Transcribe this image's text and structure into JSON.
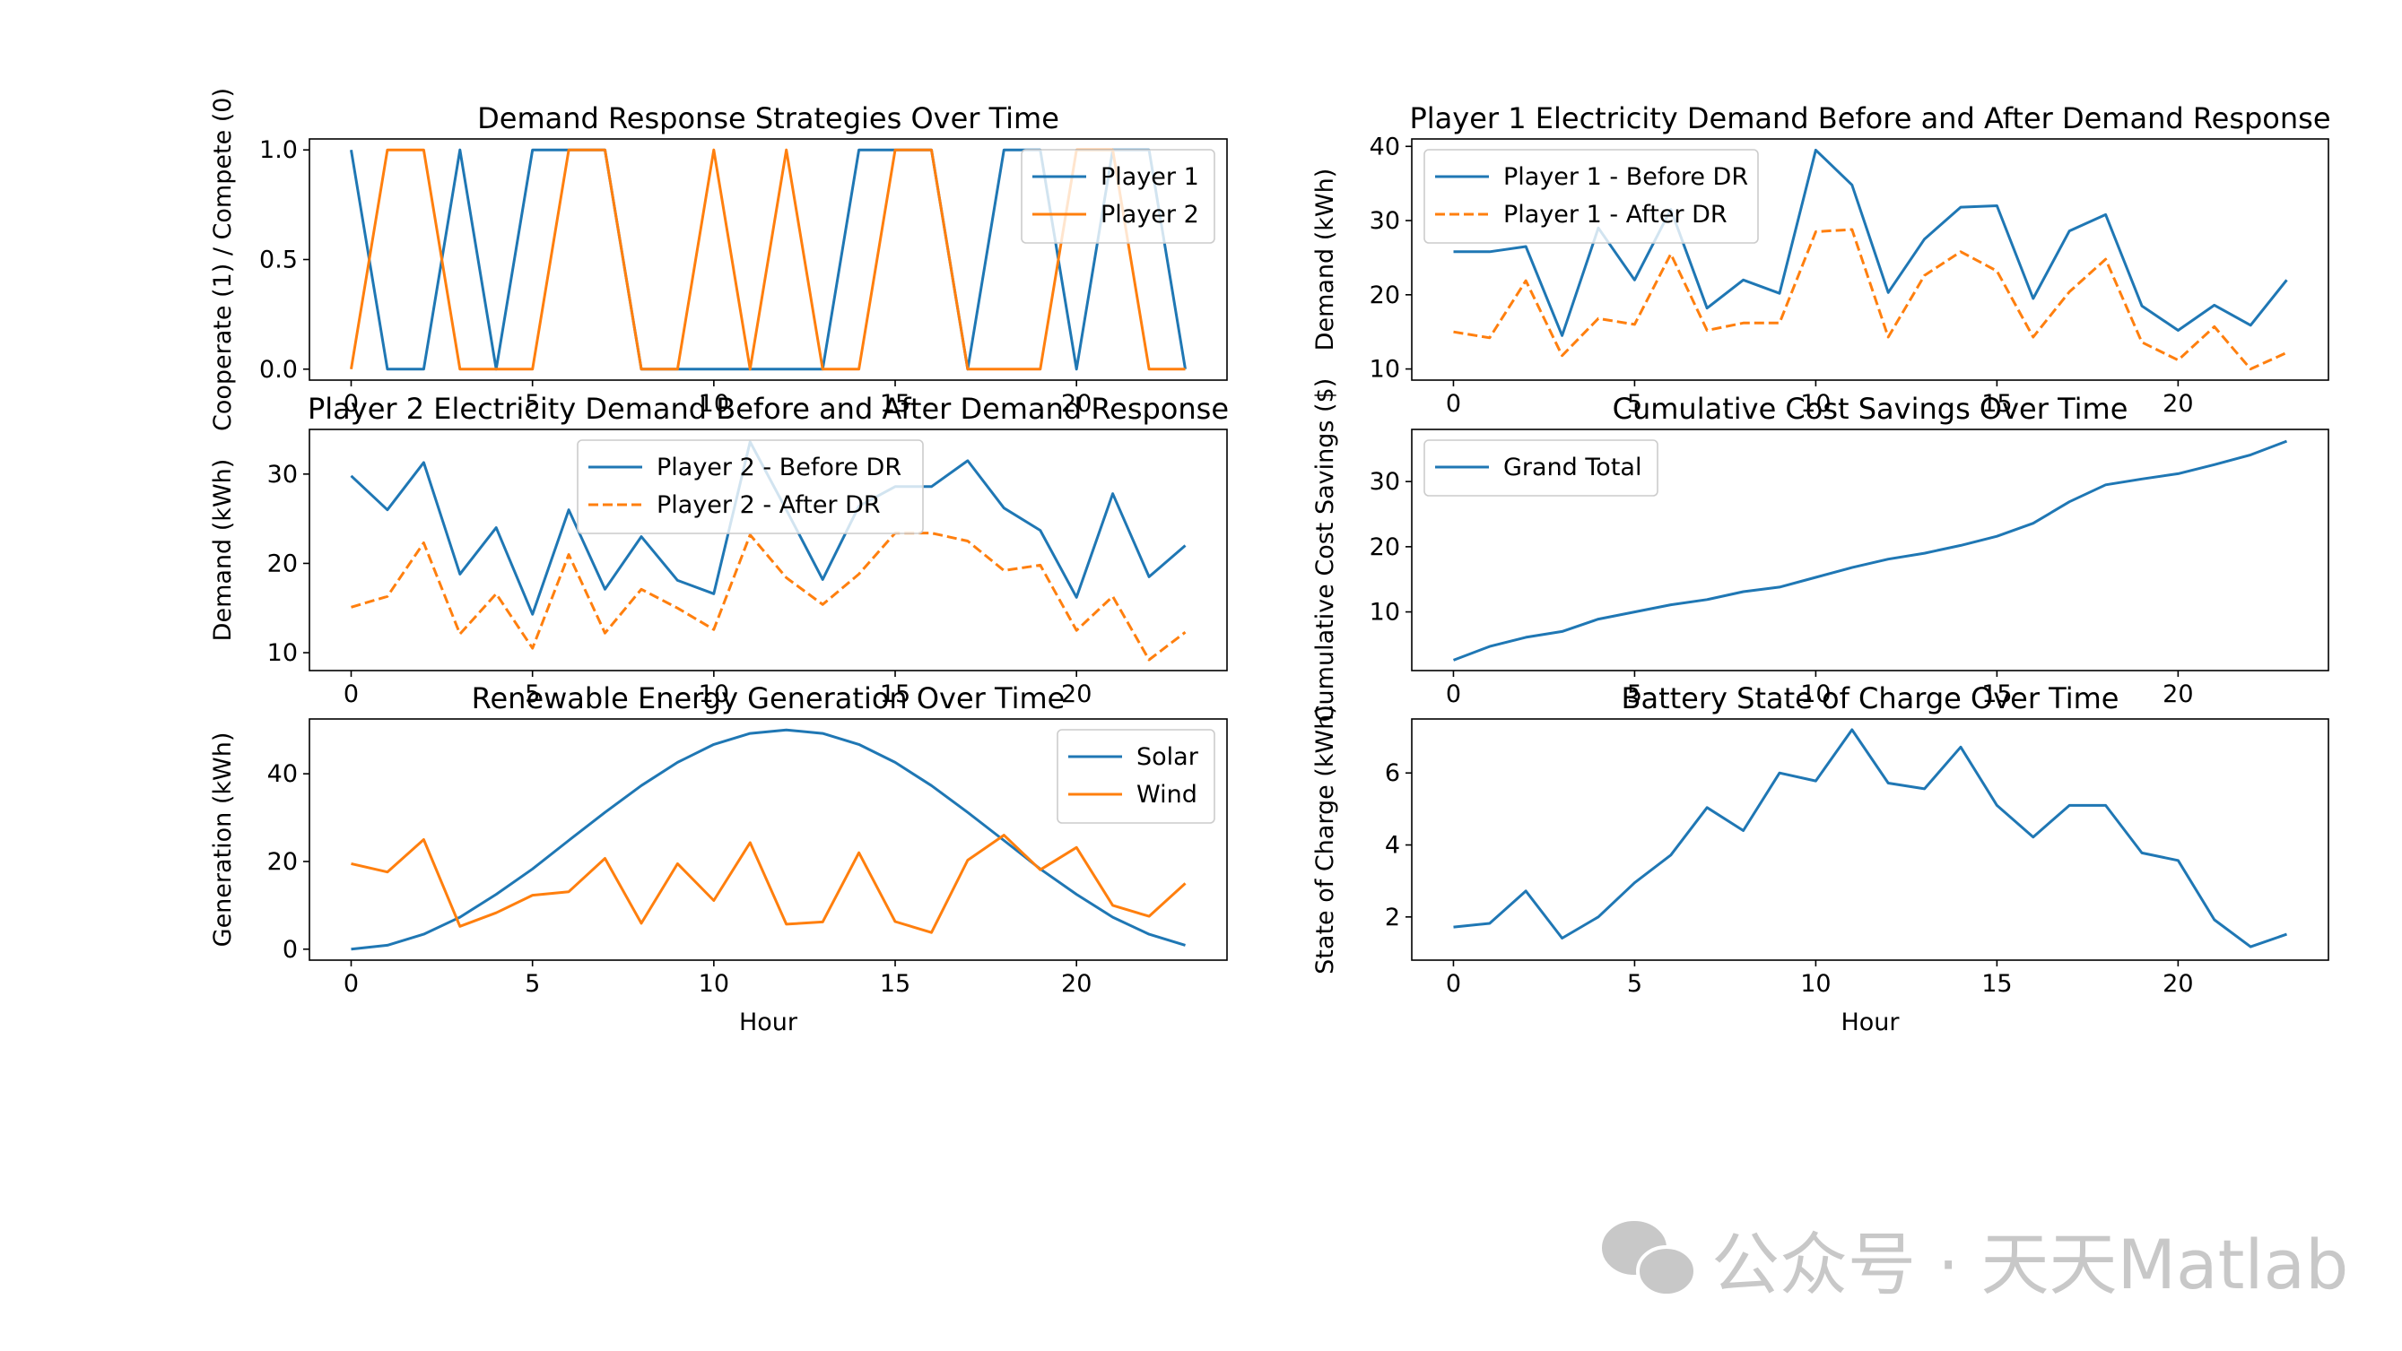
{
  "chart_data": [
    {
      "type": "line",
      "title": "Demand Response Strategies Over Time",
      "xlabel": "",
      "ylabel": "Cooperate (1) / Compete (0)",
      "xlim": [
        -1.15,
        24.15
      ],
      "ylim": [
        -0.05,
        1.05
      ],
      "xticks": [
        0,
        5,
        10,
        15,
        20
      ],
      "yticks": [
        0.0,
        0.5,
        1.0
      ],
      "ytick_labels": [
        "0.0",
        "0.5",
        "1.0"
      ],
      "legend_position": "top-right",
      "x": [
        0,
        1,
        2,
        3,
        4,
        5,
        6,
        7,
        8,
        9,
        10,
        11,
        12,
        13,
        14,
        15,
        16,
        17,
        18,
        19,
        20,
        21,
        22,
        23
      ],
      "series": [
        {
          "name": "Player 1",
          "color": "#1f77b4",
          "dash": "solid",
          "values": [
            1,
            0,
            0,
            1,
            0,
            1,
            1,
            1,
            0,
            0,
            0,
            0,
            0,
            0,
            1,
            1,
            1,
            0,
            1,
            1,
            0,
            1,
            1,
            0
          ]
        },
        {
          "name": "Player 2",
          "color": "#ff7f0e",
          "dash": "solid",
          "values": [
            0,
            1,
            1,
            0,
            0,
            0,
            1,
            1,
            0,
            0,
            1,
            0,
            1,
            0,
            0,
            1,
            1,
            0,
            0,
            0,
            1,
            1,
            0,
            0
          ]
        }
      ]
    },
    {
      "type": "line",
      "title": "Player 1 Electricity Demand Before and After Demand Response",
      "xlabel": "",
      "ylabel": "Demand (kWh)",
      "xlim": [
        -1.15,
        24.15
      ],
      "ylim": [
        8.5,
        41
      ],
      "xticks": [
        0,
        5,
        10,
        15,
        20
      ],
      "yticks": [
        10,
        20,
        30,
        40
      ],
      "ytick_labels": [
        "10",
        "20",
        "30",
        "40"
      ],
      "legend_position": "top-left",
      "x": [
        0,
        1,
        2,
        3,
        4,
        5,
        6,
        7,
        8,
        9,
        10,
        11,
        12,
        13,
        14,
        15,
        16,
        17,
        18,
        19,
        20,
        21,
        22,
        23
      ],
      "series": [
        {
          "name": "Player 1 - Before DR",
          "color": "#1f77b4",
          "dash": "solid",
          "values": [
            25.8,
            25.8,
            26.5,
            14.5,
            29,
            22,
            31.5,
            18.2,
            22,
            20.2,
            39.5,
            34.8,
            20.3,
            27.5,
            31.8,
            32,
            19.5,
            28.6,
            30.8,
            18.5,
            15.2,
            18.6,
            15.9,
            22
          ]
        },
        {
          "name": "Player 1 - After DR",
          "color": "#ff7f0e",
          "dash": "dashed",
          "values": [
            15,
            14.2,
            21.9,
            11.8,
            16.8,
            16,
            25.5,
            15.2,
            16.2,
            16.2,
            28.5,
            28.8,
            14.3,
            22.6,
            25.8,
            23.2,
            14.3,
            20.4,
            24.8,
            13.6,
            11.2,
            15.7,
            10,
            12.2
          ]
        }
      ]
    },
    {
      "type": "line",
      "title": "Player 2 Electricity Demand Before and After Demand Response",
      "xlabel": "",
      "ylabel": "Demand (kWh)",
      "xlim": [
        -1.15,
        24.15
      ],
      "ylim": [
        8,
        35
      ],
      "xticks": [
        0,
        5,
        10,
        15,
        20
      ],
      "yticks": [
        10,
        20,
        30
      ],
      "ytick_labels": [
        "10",
        "20",
        "30"
      ],
      "legend_position": "upper-center",
      "x": [
        0,
        1,
        2,
        3,
        4,
        5,
        6,
        7,
        8,
        9,
        10,
        11,
        12,
        13,
        14,
        15,
        16,
        17,
        18,
        19,
        20,
        21,
        22,
        23
      ],
      "series": [
        {
          "name": "Player 2 - Before DR",
          "color": "#1f77b4",
          "dash": "solid",
          "values": [
            29.8,
            26,
            31.3,
            18.8,
            24,
            14.3,
            26,
            17.1,
            23,
            18.1,
            16.6,
            33.6,
            26,
            18.2,
            26.4,
            28.6,
            28.6,
            31.5,
            26.2,
            23.7,
            16.2,
            27.8,
            18.5,
            22
          ]
        },
        {
          "name": "Player 2 - After DR",
          "color": "#ff7f0e",
          "dash": "dashed",
          "values": [
            15.1,
            16.3,
            22.3,
            12.1,
            16.6,
            10.5,
            21,
            12.2,
            17.1,
            15,
            12.6,
            23.2,
            18.4,
            15.4,
            18.8,
            23.4,
            23.4,
            22.5,
            19.2,
            19.8,
            12.5,
            16.3,
            9.2,
            12.3
          ]
        }
      ]
    },
    {
      "type": "line",
      "title": "Cumulative Cost Savings Over Time",
      "xlabel": "",
      "ylabel": "Cumulative Cost Savings ($)",
      "xlim": [
        -1.15,
        24.15
      ],
      "ylim": [
        1,
        38
      ],
      "xticks": [
        0,
        5,
        10,
        15,
        20
      ],
      "yticks": [
        10,
        20,
        30
      ],
      "ytick_labels": [
        "10",
        "20",
        "30"
      ],
      "legend_position": "top-left",
      "x": [
        0,
        1,
        2,
        3,
        4,
        5,
        6,
        7,
        8,
        9,
        10,
        11,
        12,
        13,
        14,
        15,
        16,
        17,
        18,
        19,
        20,
        21,
        22,
        23
      ],
      "series": [
        {
          "name": "Grand Total",
          "color": "#1f77b4",
          "dash": "solid",
          "values": [
            2.6,
            4.7,
            6.1,
            7,
            8.9,
            10,
            11.1,
            11.9,
            13.1,
            13.8,
            15.3,
            16.8,
            18.1,
            19,
            20.2,
            21.6,
            23.6,
            26.9,
            29.5,
            30.4,
            31.2,
            32.6,
            34.1,
            36.2
          ]
        }
      ]
    },
    {
      "type": "line",
      "title": "Renewable Energy Generation Over Time",
      "xlabel": "Hour",
      "ylabel": "Generation (kWh)",
      "xlim": [
        -1.15,
        24.15
      ],
      "ylim": [
        -2.5,
        52.5
      ],
      "xticks": [
        0,
        5,
        10,
        15,
        20
      ],
      "yticks": [
        0,
        20,
        40
      ],
      "ytick_labels": [
        "0",
        "20",
        "40"
      ],
      "legend_position": "top-right",
      "x": [
        0,
        1,
        2,
        3,
        4,
        5,
        6,
        7,
        8,
        9,
        10,
        11,
        12,
        13,
        14,
        15,
        16,
        17,
        18,
        19,
        20,
        21,
        22,
        23
      ],
      "series": [
        {
          "name": "Solar",
          "color": "#1f77b4",
          "dash": "solid",
          "values": [
            0,
            0.9,
            3.4,
            7.3,
            12.5,
            18.3,
            24.8,
            31.2,
            37.3,
            42.6,
            46.7,
            49.2,
            50,
            49.2,
            46.7,
            42.6,
            37.3,
            31.2,
            24.8,
            18.3,
            12.5,
            7.3,
            3.4,
            0.9
          ]
        },
        {
          "name": "Wind",
          "color": "#ff7f0e",
          "dash": "solid",
          "values": [
            19.5,
            17.6,
            25,
            5.2,
            8.3,
            12.3,
            13.1,
            20.7,
            5.9,
            19.5,
            11.1,
            24.3,
            5.7,
            6.2,
            22,
            6.3,
            3.8,
            20.3,
            26,
            18.1,
            23.2,
            10,
            7.5,
            15
          ]
        }
      ]
    },
    {
      "type": "line",
      "title": "Battery State of Charge Over Time",
      "xlabel": "Hour",
      "ylabel": "State of Charge (kWh)",
      "xlim": [
        -1.15,
        24.15
      ],
      "ylim": [
        0.8,
        7.5
      ],
      "xticks": [
        0,
        5,
        10,
        15,
        20
      ],
      "yticks": [
        2,
        4,
        6
      ],
      "ytick_labels": [
        "2",
        "4",
        "6"
      ],
      "legend_position": "none",
      "x": [
        0,
        1,
        2,
        3,
        4,
        5,
        6,
        7,
        8,
        9,
        10,
        11,
        12,
        13,
        14,
        15,
        16,
        17,
        18,
        19,
        20,
        21,
        22,
        23
      ],
      "series": [
        {
          "name": "State of Charge",
          "color": "#1f77b4",
          "dash": "solid",
          "values": [
            1.72,
            1.82,
            2.72,
            1.41,
            2.0,
            2.95,
            3.72,
            5.04,
            4.4,
            6.0,
            5.78,
            7.2,
            5.72,
            5.56,
            6.72,
            5.1,
            4.22,
            5.1,
            5.1,
            3.78,
            3.57,
            1.92,
            1.17,
            1.52
          ]
        }
      ]
    }
  ],
  "watermark": {
    "text": "公众号 · 天天Matlab",
    "icon": "wechat-icon",
    "color": "#c8c8c8"
  }
}
